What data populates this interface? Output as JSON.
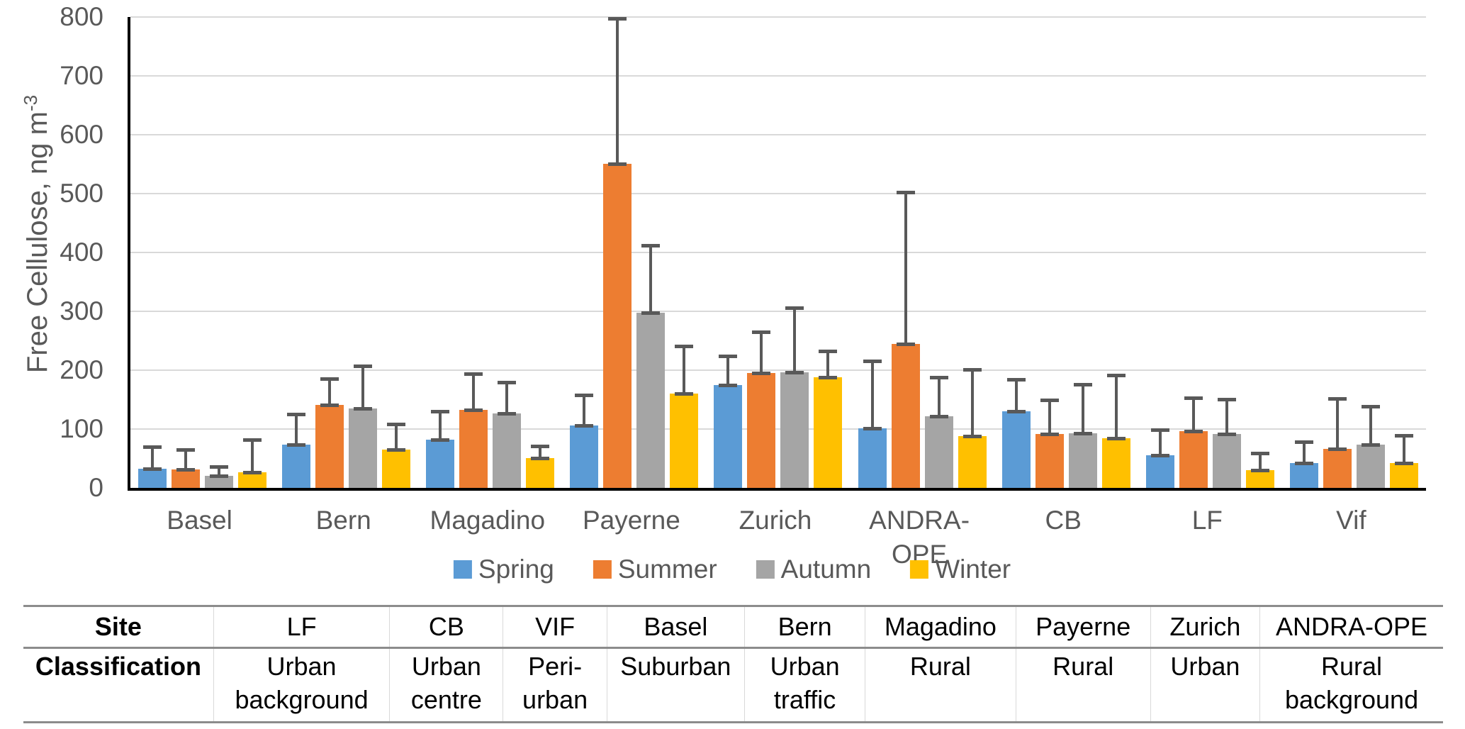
{
  "chart_data": {
    "type": "bar",
    "title": "",
    "ylabel": {
      "text": "Free Cellulose, ng m",
      "superscript": "-3"
    },
    "ylim": [
      0,
      800
    ],
    "yticks": [
      0,
      100,
      200,
      300,
      400,
      500,
      600,
      700,
      800
    ],
    "grid": "horizontal",
    "legend_position": "bottom-center",
    "categories": [
      "Basel",
      "Bern",
      "Magadino",
      "Payerne",
      "Zurich",
      "ANDRA-OPE",
      "CB",
      "LF",
      "Vif"
    ],
    "series": [
      {
        "name": "Spring",
        "color": "#5B9BD5",
        "values": [
          33,
          74,
          82,
          106,
          175,
          101,
          130,
          55,
          42
        ],
        "error_top": [
          72,
          128,
          133,
          160,
          227,
          218,
          187,
          101,
          81
        ]
      },
      {
        "name": "Summer",
        "color": "#ED7D31",
        "values": [
          31,
          141,
          133,
          550,
          195,
          245,
          91,
          96,
          66
        ],
        "error_top": [
          68,
          188,
          196,
          800,
          268,
          505,
          152,
          156,
          154
        ]
      },
      {
        "name": "Autumn",
        "color": "#A5A5A5",
        "values": [
          20,
          135,
          127,
          298,
          196,
          122,
          93,
          91,
          74
        ],
        "error_top": [
          38,
          210,
          182,
          415,
          309,
          190,
          178,
          153,
          141
        ]
      },
      {
        "name": "Winter",
        "color": "#FFC000",
        "values": [
          26,
          65,
          51,
          160,
          188,
          88,
          84,
          30,
          42
        ],
        "error_top": [
          84,
          111,
          74,
          243,
          235,
          204,
          194,
          62,
          91
        ]
      }
    ],
    "error_bar_color": "#595959",
    "gridline_color": "#D9D9D9",
    "axis_color": "#000000",
    "tick_label_color": "#595959"
  },
  "table": {
    "rows": [
      {
        "label": "Site",
        "cells": [
          "LF",
          "CB",
          "VIF",
          "Basel",
          "Bern",
          "Magadino",
          "Payerne",
          "Zurich",
          "ANDRA-OPE"
        ]
      },
      {
        "label": "Classification",
        "cells": [
          "Urban background",
          "Urban centre",
          "Peri-urban",
          "Suburban",
          "Urban traffic",
          "Rural",
          "Rural",
          "Urban",
          "Rural background"
        ]
      }
    ]
  }
}
